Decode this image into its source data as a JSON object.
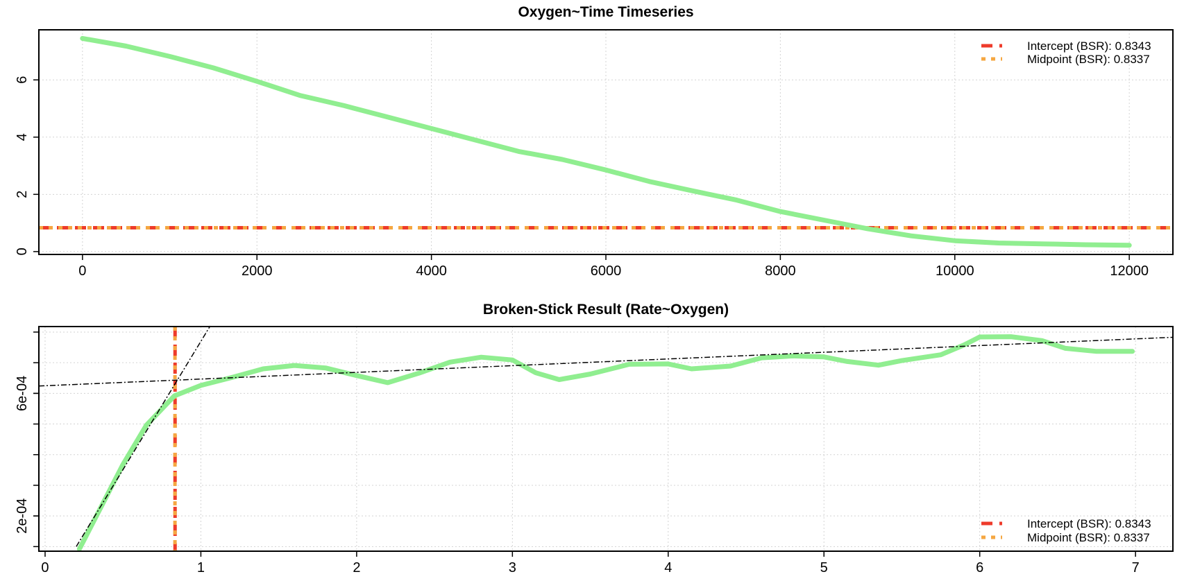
{
  "colors": {
    "series": "#90ee90",
    "intercept": "#ee3b2b",
    "midpoint": "#f5a742",
    "fit_lines": "#000000"
  },
  "chart_data": [
    {
      "type": "line",
      "title": "Oxygen~Time Timeseries",
      "xlabel": "",
      "ylabel": "",
      "xlim": [
        -500,
        12500
      ],
      "ylim": [
        -0.1,
        7.75
      ],
      "x_ticks": [
        0,
        2000,
        4000,
        6000,
        8000,
        10000,
        12000
      ],
      "x_tick_labels": [
        "0",
        "2000",
        "4000",
        "6000",
        "8000",
        "10000",
        "12000"
      ],
      "y_ticks": [
        0,
        2,
        4,
        6
      ],
      "y_tick_labels": [
        "0",
        "2",
        "4",
        "6"
      ],
      "grid": true,
      "series": [
        {
          "x": [
            0,
            500,
            1000,
            1500,
            2000,
            2500,
            3000,
            3500,
            4000,
            4500,
            5000,
            5500,
            6000,
            6500,
            7000,
            7500,
            8000,
            8500,
            9000,
            9500,
            10000,
            10500,
            11000,
            11500,
            12000
          ],
          "y": [
            7.45,
            7.18,
            6.82,
            6.42,
            5.95,
            5.45,
            5.1,
            4.7,
            4.3,
            3.9,
            3.5,
            3.22,
            2.85,
            2.45,
            2.12,
            1.8,
            1.4,
            1.1,
            0.8,
            0.55,
            0.38,
            0.3,
            0.27,
            0.24,
            0.22
          ]
        }
      ],
      "hlines": [
        {
          "name": "Intercept (BSR)",
          "value": 0.8343
        },
        {
          "name": "Midpoint (BSR)",
          "value": 0.8337
        }
      ],
      "legend": {
        "position": "top-right",
        "entries": [
          "Intercept (BSR): 0.8343",
          "Midpoint (BSR): 0.8337"
        ]
      }
    },
    {
      "type": "line",
      "title": "Broken-Stick Result (Rate~Oxygen)",
      "xlabel": "",
      "ylabel": "",
      "xlim": [
        -0.04,
        7.24
      ],
      "ylim": [
        8.5e-05,
        0.000818
      ],
      "x_ticks": [
        0,
        1,
        2,
        3,
        4,
        5,
        6,
        7
      ],
      "x_tick_labels": [
        "0",
        "1",
        "2",
        "3",
        "4",
        "5",
        "6",
        "7"
      ],
      "y_ticks": [
        0.0002,
        0.0006
      ],
      "y_tick_labels": [
        "2e-04",
        "6e-04"
      ],
      "y_minor_ticks": [
        0.0001,
        0.0002,
        0.0003,
        0.0004,
        0.0005,
        0.0006,
        0.0007,
        0.0008
      ],
      "grid": true,
      "series": [
        {
          "x": [
            0.22,
            0.35,
            0.5,
            0.65,
            0.83,
            1.0,
            1.2,
            1.4,
            1.6,
            1.8,
            2.0,
            2.2,
            2.4,
            2.6,
            2.8,
            3.0,
            3.15,
            3.3,
            3.5,
            3.75,
            4.0,
            4.15,
            4.4,
            4.6,
            4.8,
            5.0,
            5.15,
            5.35,
            5.5,
            5.75,
            5.9,
            6.0,
            6.2,
            6.4,
            6.55,
            6.75,
            6.98
          ],
          "y": [
            9.2e-05,
            0.00022,
            0.000368,
            0.000496,
            0.000592,
            0.000626,
            0.000652,
            0.00068,
            0.000691,
            0.000683,
            0.000658,
            0.000635,
            0.000666,
            0.000702,
            0.000718,
            0.000709,
            0.000667,
            0.000645,
            0.000663,
            0.000695,
            0.000696,
            0.00068,
            0.000689,
            0.000716,
            0.000722,
            0.000719,
            0.000704,
            0.000692,
            0.000707,
            0.000726,
            0.000758,
            0.000784,
            0.000785,
            0.000772,
            0.000747,
            0.000737,
            0.000737
          ]
        }
      ],
      "fit_lines": [
        {
          "x": [
            0.2,
            1.06
          ],
          "y": [
            0.0001,
            0.00082
          ]
        },
        {
          "x": [
            -0.04,
            7.24
          ],
          "y": [
            0.000624,
            0.000783
          ]
        }
      ],
      "vlines": [
        {
          "name": "Intercept (BSR)",
          "value": 0.8343
        },
        {
          "name": "Midpoint (BSR)",
          "value": 0.8337
        }
      ],
      "legend": {
        "position": "bottom-right",
        "entries": [
          "Intercept (BSR): 0.8343",
          "Midpoint (BSR): 0.8337"
        ]
      }
    }
  ]
}
